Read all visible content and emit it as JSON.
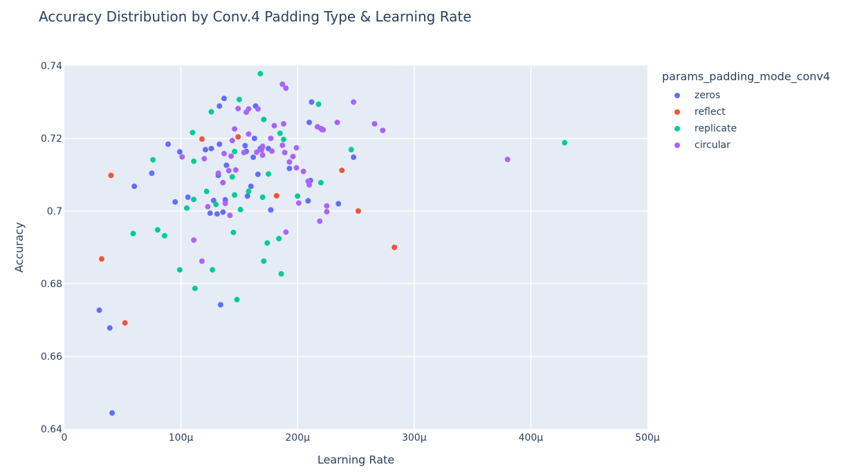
{
  "chart_data": {
    "type": "scatter",
    "title": "Accuracy Distribution by Conv.4 Padding Type & Learning Rate",
    "xlabel": "Learning Rate",
    "ylabel": "Accuracy",
    "xlim": [
      0,
      0.0005
    ],
    "ylim": [
      0.64,
      0.74
    ],
    "x_tick_values": [
      0,
      0.0001,
      0.0002,
      0.0003,
      0.0004,
      0.0005
    ],
    "x_tick_labels": [
      "0",
      "100μ",
      "200μ",
      "300μ",
      "400μ",
      "500μ"
    ],
    "y_tick_values": [
      0.64,
      0.66,
      0.68,
      0.7,
      0.72,
      0.74
    ],
    "y_tick_labels": [
      "0.64",
      "0.66",
      "0.68",
      "0.7",
      "0.72",
      "0.74"
    ],
    "grid": true,
    "legend_title": "params_padding_mode_conv4",
    "legend_position": "right",
    "series": [
      {
        "name": "zeros",
        "color": "#636efa",
        "points": [
          [
            3e-05,
            0.6727
          ],
          [
            3.9e-05,
            0.6678
          ],
          [
            4.1e-05,
            0.6444
          ],
          [
            6e-05,
            0.7068
          ],
          [
            7.5e-05,
            0.7104
          ],
          [
            8.9e-05,
            0.7184
          ],
          [
            9.5e-05,
            0.7025
          ],
          [
            9.9e-05,
            0.7163
          ],
          [
            0.000106,
            0.7038
          ],
          [
            0.000121,
            0.7169
          ],
          [
            0.000125,
            0.6994
          ],
          [
            0.000126,
            0.7172
          ],
          [
            0.000128,
            0.7029
          ],
          [
            0.000131,
            0.6992
          ],
          [
            0.000132,
            0.7098
          ],
          [
            0.000133,
            0.7184
          ],
          [
            0.000133,
            0.7289
          ],
          [
            0.000134,
            0.6742
          ],
          [
            0.000136,
            0.6997
          ],
          [
            0.000137,
            0.731
          ],
          [
            0.000138,
            0.7031
          ],
          [
            0.000139,
            0.7126
          ],
          [
            0.000155,
            0.718
          ],
          [
            0.000156,
            0.7164
          ],
          [
            0.000157,
            0.7041
          ],
          [
            0.00016,
            0.7068
          ],
          [
            0.000162,
            0.7148
          ],
          [
            0.000163,
            0.72
          ],
          [
            0.000164,
            0.7289
          ],
          [
            0.000166,
            0.7101
          ],
          [
            0.000168,
            0.7172
          ],
          [
            0.000175,
            0.7172
          ],
          [
            0.000177,
            0.7003
          ],
          [
            0.000193,
            0.7117
          ],
          [
            0.000209,
            0.7028
          ],
          [
            0.00021,
            0.7244
          ],
          [
            0.000211,
            0.7084
          ],
          [
            0.000212,
            0.73
          ],
          [
            0.000235,
            0.702
          ],
          [
            0.000248,
            0.7148
          ]
        ]
      },
      {
        "name": "reflect",
        "color": "#ef553b",
        "points": [
          [
            3.2e-05,
            0.6868
          ],
          [
            4e-05,
            0.7098
          ],
          [
            5.2e-05,
            0.6692
          ],
          [
            0.000118,
            0.7198
          ],
          [
            0.000149,
            0.7204
          ],
          [
            0.000182,
            0.7042
          ],
          [
            0.000238,
            0.7112
          ],
          [
            0.000252,
            0.7
          ],
          [
            0.000283,
            0.69
          ]
        ]
      },
      {
        "name": "replicate",
        "color": "#00cc96",
        "points": [
          [
            5.9e-05,
            0.6938
          ],
          [
            7.6e-05,
            0.7141
          ],
          [
            8e-05,
            0.6948
          ],
          [
            8.6e-05,
            0.6932
          ],
          [
            9.9e-05,
            0.6838
          ],
          [
            0.000105,
            0.7008
          ],
          [
            0.00011,
            0.7216
          ],
          [
            0.000111,
            0.7137
          ],
          [
            0.000111,
            0.7032
          ],
          [
            0.000112,
            0.6787
          ],
          [
            0.000122,
            0.7054
          ],
          [
            0.000126,
            0.7273
          ],
          [
            0.000127,
            0.6838
          ],
          [
            0.00013,
            0.7018
          ],
          [
            0.000144,
            0.7094
          ],
          [
            0.000145,
            0.6941
          ],
          [
            0.000146,
            0.7044
          ],
          [
            0.000146,
            0.7164
          ],
          [
            0.000148,
            0.6756
          ],
          [
            0.00015,
            0.7307
          ],
          [
            0.000151,
            0.7004
          ],
          [
            0.000158,
            0.7054
          ],
          [
            0.000168,
            0.7378
          ],
          [
            0.00017,
            0.7038
          ],
          [
            0.00017,
            0.7176
          ],
          [
            0.000171,
            0.6862
          ],
          [
            0.000171,
            0.7252
          ],
          [
            0.000174,
            0.6912
          ],
          [
            0.000175,
            0.7102
          ],
          [
            0.000184,
            0.6924
          ],
          [
            0.000185,
            0.7214
          ],
          [
            0.000186,
            0.6827
          ],
          [
            0.000188,
            0.7197
          ],
          [
            0.0002,
            0.7041
          ],
          [
            0.000218,
            0.7294
          ],
          [
            0.00022,
            0.7078
          ],
          [
            0.000246,
            0.7169
          ],
          [
            0.000429,
            0.7188
          ]
        ]
      },
      {
        "name": "circular",
        "color": "#ab63fa",
        "points": [
          [
            0.000101,
            0.7149
          ],
          [
            0.000111,
            0.692
          ],
          [
            0.000118,
            0.6862
          ],
          [
            0.00012,
            0.7144
          ],
          [
            0.000123,
            0.7012
          ],
          [
            0.000132,
            0.7104
          ],
          [
            0.000136,
            0.7078
          ],
          [
            0.000137,
            0.7158
          ],
          [
            0.000138,
            0.7021
          ],
          [
            0.000141,
            0.7111
          ],
          [
            0.000142,
            0.6988
          ],
          [
            0.000143,
            0.7151
          ],
          [
            0.000144,
            0.7194
          ],
          [
            0.000146,
            0.7226
          ],
          [
            0.000147,
            0.7113
          ],
          [
            0.000149,
            0.7282
          ],
          [
            0.000154,
            0.7161
          ],
          [
            0.000156,
            0.7272
          ],
          [
            0.000158,
            0.7212
          ],
          [
            0.000158,
            0.7281
          ],
          [
            0.000165,
            0.7162
          ],
          [
            0.000166,
            0.7281
          ],
          [
            0.000169,
            0.7168
          ],
          [
            0.00017,
            0.7154
          ],
          [
            0.00017,
            0.7178
          ],
          [
            0.000177,
            0.72
          ],
          [
            0.000178,
            0.7165
          ],
          [
            0.00018,
            0.7235
          ],
          [
            0.000187,
            0.7181
          ],
          [
            0.000187,
            0.7349
          ],
          [
            0.000188,
            0.724
          ],
          [
            0.000189,
            0.7161
          ],
          [
            0.00019,
            0.7338
          ],
          [
            0.00019,
            0.6942
          ],
          [
            0.000193,
            0.7135
          ],
          [
            0.000196,
            0.715
          ],
          [
            0.000199,
            0.7119
          ],
          [
            0.000199,
            0.7174
          ],
          [
            0.000201,
            0.7022
          ],
          [
            0.000205,
            0.7109
          ],
          [
            0.000209,
            0.7082
          ],
          [
            0.00021,
            0.7072
          ],
          [
            0.000217,
            0.7232
          ],
          [
            0.000219,
            0.6972
          ],
          [
            0.00022,
            0.7227
          ],
          [
            0.000221,
            0.7224
          ],
          [
            0.000222,
            0.7224
          ],
          [
            0.000225,
            0.6998
          ],
          [
            0.000225,
            0.7014
          ],
          [
            0.000234,
            0.7244
          ],
          [
            0.000248,
            0.73
          ],
          [
            0.000266,
            0.724
          ],
          [
            0.000273,
            0.7222
          ],
          [
            0.00038,
            0.7142
          ]
        ]
      }
    ]
  }
}
